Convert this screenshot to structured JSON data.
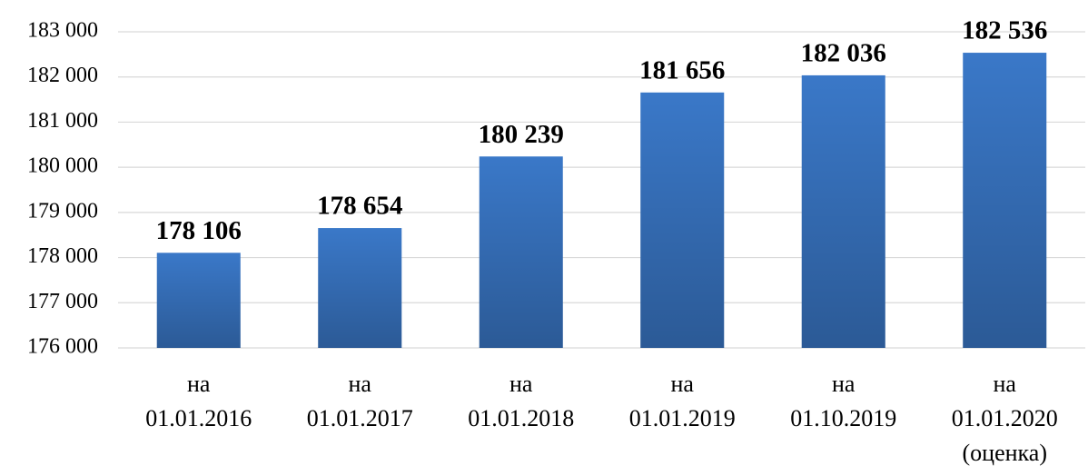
{
  "chart_data": {
    "type": "bar",
    "categories": [
      "на\n01.01.2016",
      "на\n01.01.2017",
      "на\n01.01.2018",
      "на\n01.01.2019",
      "на\n01.10.2019",
      "на\n01.01.2020\n(оценка)"
    ],
    "values": [
      178106,
      178654,
      180239,
      181656,
      182036,
      182536
    ],
    "value_labels": [
      "178 106",
      "178 654",
      "180 239",
      "181 656",
      "182 036",
      "182 536"
    ],
    "color": "#3a78c8",
    "ylim": [
      176000,
      183000
    ],
    "yticks": [
      {
        "value": 176000,
        "label": "176 000"
      },
      {
        "value": 177000,
        "label": "177 000"
      },
      {
        "value": 178000,
        "label": "178 000"
      },
      {
        "value": 179000,
        "label": "179 000"
      },
      {
        "value": 180000,
        "label": "180 000"
      },
      {
        "value": 181000,
        "label": "181 000"
      },
      {
        "value": 182000,
        "label": "182 000"
      },
      {
        "value": 183000,
        "label": "183 000"
      }
    ],
    "grid": true
  }
}
